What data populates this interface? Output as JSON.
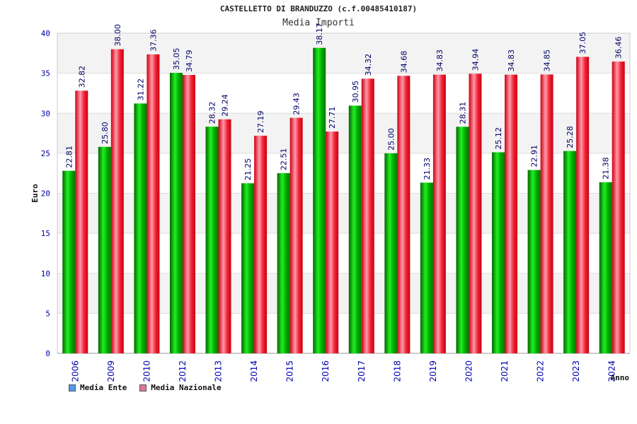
{
  "chart_data": {
    "type": "bar",
    "title": "CASTELLETTO DI BRANDUZZO (c.f.00485410187)",
    "subtitle": "Media Importi",
    "xlabel": "Anno",
    "ylabel": "Euro",
    "ylim": [
      0,
      40
    ],
    "yticks": [
      0,
      5,
      10,
      15,
      20,
      25,
      30,
      35,
      40
    ],
    "grid": true,
    "legend_position": "bottom-left",
    "categories": [
      "2006",
      "2009",
      "2010",
      "2012",
      "2013",
      "2014",
      "2015",
      "2016",
      "2017",
      "2018",
      "2019",
      "2020",
      "2021",
      "2022",
      "2023",
      "2024"
    ],
    "series": [
      {
        "name": "Media Ente",
        "color": "#00bb00",
        "legend_color": "#5599ee",
        "values": [
          22.81,
          25.8,
          31.22,
          35.05,
          28.32,
          21.25,
          22.51,
          38.17,
          30.95,
          25.0,
          21.33,
          28.31,
          25.12,
          22.91,
          25.28,
          21.38
        ],
        "labels": [
          "22.81",
          "25.80",
          "31.22",
          "35.05",
          "28.32",
          "21.25",
          "22.51",
          "38.17",
          "30.95",
          "25.00",
          "21.33",
          "28.31",
          "25.12",
          "22.91",
          "25.28",
          "21.38"
        ]
      },
      {
        "name": "Media Nazionale",
        "color": "#ee2233",
        "legend_color": "#dd7799",
        "values": [
          32.82,
          38.0,
          37.36,
          34.79,
          29.24,
          27.19,
          29.43,
          27.71,
          34.32,
          34.68,
          34.83,
          34.94,
          34.83,
          34.85,
          37.05,
          36.46
        ],
        "labels": [
          "32.82",
          "38.00",
          "37.36",
          "34.79",
          "29.24",
          "27.19",
          "29.43",
          "27.71",
          "34.32",
          "34.68",
          "34.83",
          "34.94",
          "34.83",
          "34.85",
          "37.05",
          "36.46"
        ]
      }
    ]
  }
}
